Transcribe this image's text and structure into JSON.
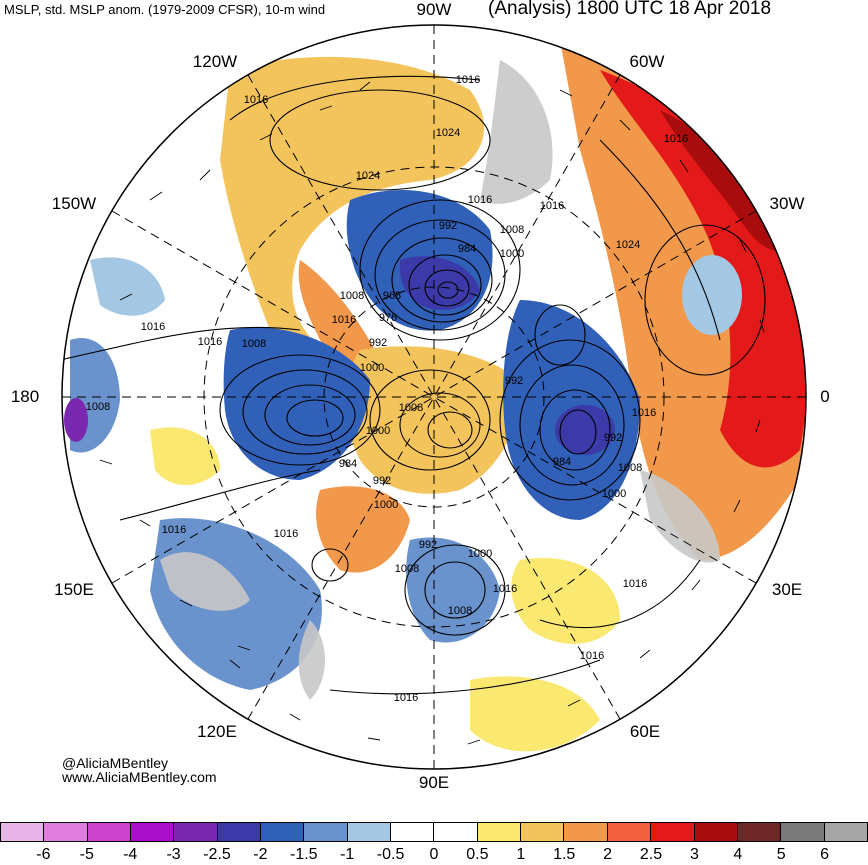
{
  "header": {
    "left_title": "MSLP, std. MSLP anom. (1979-2009 CFSR), 10-m wind",
    "right_title": "(Analysis) 1800 UTC 18 Apr 2018"
  },
  "longitude_labels": {
    "n90w": "90W",
    "n120w": "120W",
    "n60w": "60W",
    "n150w": "150W",
    "n30w": "30W",
    "n180": "180",
    "n0": "0",
    "n150e": "150E",
    "n30e": "30E",
    "n120e": "120E",
    "n60e": "60E",
    "n90e": "90E"
  },
  "isobar_labels": [
    "1016",
    "1024",
    "1024",
    "1016",
    "1016",
    "1016",
    "1008",
    "1016",
    "1016",
    "992",
    "984",
    "1008",
    "1000",
    "968",
    "976",
    "1008",
    "1016",
    "992",
    "1000",
    "992",
    "1008",
    "1008",
    "1000",
    "984",
    "1000",
    "992",
    "984",
    "992",
    "1008",
    "1000",
    "1016",
    "1016",
    "1000",
    "992",
    "1008",
    "1016",
    "1008",
    "1016",
    "1016",
    "1024",
    "1016",
    "1016",
    "1016"
  ],
  "credits": {
    "handle": "@AliciaMBentley",
    "website": "www.AliciaMBentley.com"
  },
  "colorbar": {
    "colors": [
      "#e8b5e8",
      "#e07ee0",
      "#cc44cc",
      "#aa10cc",
      "#7a28b0",
      "#3c3aa8",
      "#3060b8",
      "#6a92cc",
      "#a4c8e4",
      "#ffffff",
      "#ffffff",
      "#fbe870",
      "#f4c45c",
      "#f2984a",
      "#f0603c",
      "#e41a1a",
      "#a80c0c",
      "#6e2828",
      "#7a7a7a",
      "#a6a6a6"
    ],
    "tick_labels": [
      "-6",
      "-5",
      "-4",
      "-3",
      "-2.5",
      "-2",
      "-1.5",
      "-1",
      "-0.5",
      "0",
      "0.5",
      "1",
      "1.5",
      "2",
      "2.5",
      "3",
      "4",
      "5",
      "6"
    ]
  }
}
